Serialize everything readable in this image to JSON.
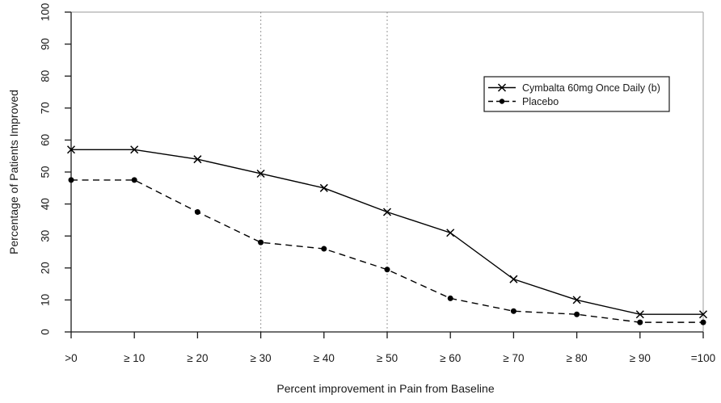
{
  "chart_data": {
    "type": "line",
    "title": "",
    "xlabel": "Percent improvement in Pain from Baseline",
    "ylabel": "Percentage of Patients Improved",
    "categories": [
      ">0",
      "≥ 10",
      "≥ 20",
      "≥ 30",
      "≥ 40",
      "≥ 50",
      "≥ 60",
      "≥ 70",
      "≥ 80",
      "≥ 90",
      "=100"
    ],
    "y_ticks": [
      0,
      10,
      20,
      30,
      40,
      50,
      60,
      70,
      80,
      90,
      100
    ],
    "ylim": [
      0,
      100
    ],
    "grid": "off",
    "series": [
      {
        "name": "Cymbalta 60mg Once Daily (b)",
        "marker": "x",
        "line_style": "solid",
        "values": [
          57,
          57,
          54,
          49.5,
          45,
          37.5,
          31,
          16.5,
          10,
          5.5,
          5.5
        ]
      },
      {
        "name": "Placebo",
        "marker": "dot",
        "line_style": "dashed",
        "values": [
          47.5,
          47.5,
          37.5,
          28,
          26,
          19.5,
          10.5,
          6.5,
          5.5,
          3,
          3
        ]
      }
    ],
    "reference_lines": {
      "at_categories": [
        "≥ 30",
        "≥ 50"
      ],
      "style": "dotted"
    },
    "legend": {
      "position": "top-right",
      "entries": [
        "Cymbalta 60mg Once Daily (b)",
        "Placebo"
      ]
    },
    "colors": {
      "series": "#000000",
      "axis": "#1a1a1a",
      "frame_top_right": "#adadad",
      "reference_line": "#8c8c8c",
      "background": "#ffffff"
    }
  }
}
